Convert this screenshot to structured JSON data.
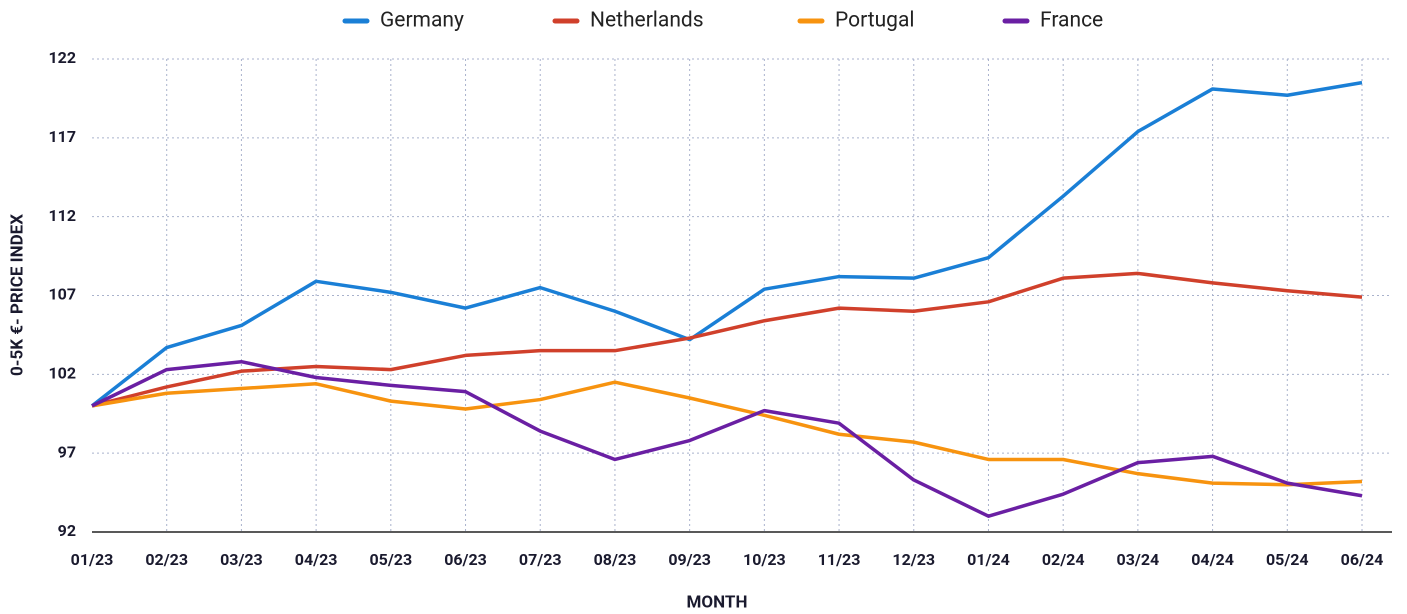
{
  "chart_data": {
    "type": "line",
    "xlabel": "MONTH",
    "ylabel": "0-5K €- PRICE INDEX",
    "categories": [
      "01/23",
      "02/23",
      "03/23",
      "04/23",
      "05/23",
      "06/23",
      "07/23",
      "08/23",
      "09/23",
      "10/23",
      "11/23",
      "12/23",
      "01/24",
      "02/24",
      "03/24",
      "04/24",
      "05/24",
      "06/24"
    ],
    "series": [
      {
        "name": "Germany",
        "color": "#1a7fd6",
        "values": [
          100,
          103.7,
          105.1,
          107.9,
          107.2,
          106.2,
          107.5,
          106.0,
          104.2,
          107.4,
          108.2,
          108.1,
          109.4,
          113.3,
          117.4,
          120.1,
          119.7,
          120.5
        ]
      },
      {
        "name": "Netherlands",
        "color": "#d0402b",
        "values": [
          100,
          101.2,
          102.2,
          102.5,
          102.3,
          103.2,
          103.5,
          103.5,
          104.3,
          105.4,
          106.2,
          106.0,
          106.6,
          108.1,
          108.4,
          107.8,
          107.3,
          106.9
        ]
      },
      {
        "name": "Portugal",
        "color": "#f7930f",
        "values": [
          100,
          100.8,
          101.1,
          101.4,
          100.3,
          99.8,
          100.4,
          101.5,
          100.5,
          99.4,
          98.2,
          97.7,
          96.6,
          96.6,
          95.7,
          95.1,
          95.0,
          95.2
        ]
      },
      {
        "name": "France",
        "color": "#6a1fa3",
        "values": [
          100,
          102.3,
          102.8,
          101.8,
          101.3,
          100.9,
          98.4,
          96.6,
          97.8,
          99.7,
          98.9,
          95.3,
          93.0,
          94.4,
          96.4,
          96.8,
          95.1,
          94.3
        ]
      }
    ],
    "ylim": [
      92,
      122
    ],
    "yticks": [
      92,
      97,
      102,
      107,
      112,
      117,
      122
    ],
    "grid": true,
    "legend": "top"
  }
}
